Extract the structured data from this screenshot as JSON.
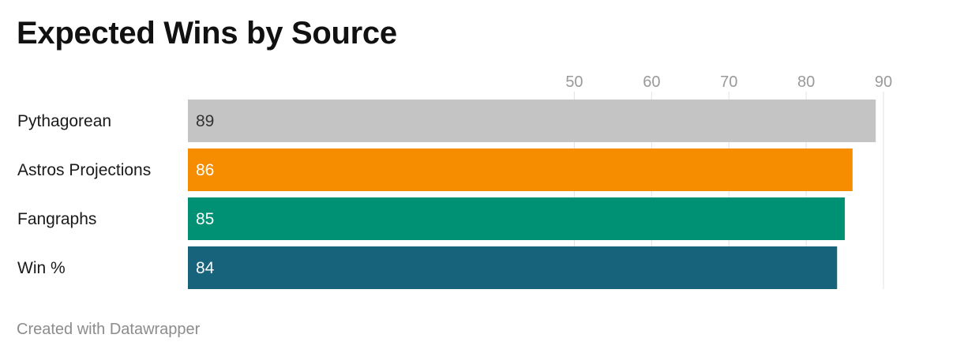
{
  "header": {
    "title": "Expected Wins by Source"
  },
  "footer": {
    "credit": "Created with Datawrapper"
  },
  "chart_data": {
    "type": "bar",
    "orientation": "horizontal",
    "title": "Expected Wins by Source",
    "xlim": [
      0,
      90
    ],
    "xticks": [
      50,
      60,
      70,
      80,
      90
    ],
    "grid": true,
    "categories": [
      "Pythagorean",
      "Astros Projections",
      "Fangraphs",
      "Win %"
    ],
    "values": [
      89,
      86,
      85,
      84
    ],
    "colors": [
      "#c4c4c4",
      "#f68c00",
      "#009175",
      "#17637c"
    ],
    "label_colors": [
      "#333333",
      "#ffffff",
      "#ffffff",
      "#ffffff"
    ]
  }
}
